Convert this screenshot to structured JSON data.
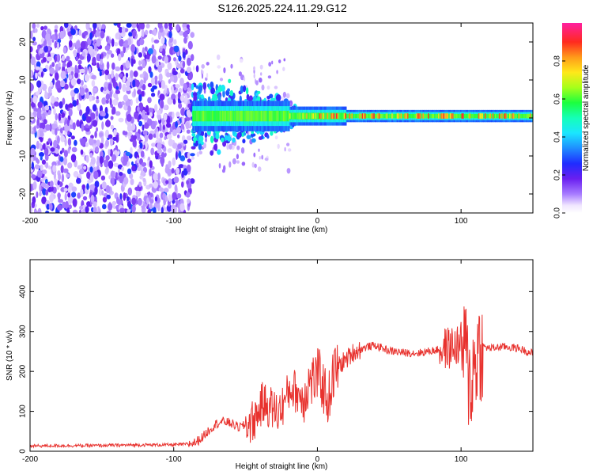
{
  "title": "S126.2025.224.11.29.G12",
  "colors": {
    "snr_line": "#e8322e",
    "spectrogram_low": "#7a1fe6",
    "spectrogram_mid": "#1cff6a",
    "spectrogram_high": "#e8323c",
    "axis": "#000000"
  },
  "chart_data": [
    {
      "id": "spectrogram",
      "type": "heatmap",
      "title": "S126.2025.224.11.29.G12",
      "xlabel": "Height of straight line (km)",
      "ylabel": "Frequency (Hz)",
      "xlim": [
        -200,
        150
      ],
      "ylim": [
        -25,
        25
      ],
      "xticks": [
        -200,
        -100,
        0,
        100
      ],
      "yticks": [
        -20,
        -10,
        0,
        10,
        20
      ],
      "colorbar": {
        "label": "Normalized spectral amplitude",
        "range": [
          0,
          1
        ],
        "ticks": [
          0.0,
          0.2,
          0.4,
          0.6,
          0.8
        ]
      },
      "features": [
        {
          "region": "x -200 to -87 km",
          "description": "broadband noise, amplitude 0.1-0.3, spans full frequency range"
        },
        {
          "region": "x -87 to -20 km",
          "description": "signal emerges near 0 Hz, spread ±8 Hz, amplitude 0.3-0.6"
        },
        {
          "region": "x -20 to 150 km",
          "description": "narrow tone at ~0.5 Hz, amplitude 0.6-1.0"
        }
      ],
      "tone_frequency_hz": 0.5,
      "noise_end_km": -87
    },
    {
      "id": "snr",
      "type": "line",
      "xlabel": "Height of straight line (km)",
      "ylabel": "SNR (10 * v/v)",
      "xlim": [
        -200,
        150
      ],
      "ylim": [
        0,
        480
      ],
      "xticks": [
        -200,
        -100,
        0,
        100
      ],
      "yticks": [
        0,
        100,
        200,
        300,
        400
      ],
      "series": [
        {
          "name": "SNR",
          "x": [
            -200,
            -180,
            -160,
            -140,
            -120,
            -100,
            -90,
            -85,
            -80,
            -75,
            -70,
            -65,
            -60,
            -55,
            -50,
            -45,
            -42,
            -40,
            -38,
            -35,
            -32,
            -30,
            -28,
            -25,
            -22,
            -20,
            -18,
            -15,
            -12,
            -10,
            -8,
            -5,
            -2,
            0,
            2,
            5,
            8,
            10,
            12,
            15,
            20,
            25,
            30,
            35,
            40,
            50,
            60,
            70,
            80,
            85,
            90,
            95,
            100,
            103,
            105,
            107,
            110,
            112,
            115,
            120,
            130,
            140,
            150
          ],
          "y": [
            13,
            14,
            14,
            15,
            16,
            16,
            18,
            22,
            35,
            55,
            70,
            75,
            70,
            60,
            65,
            75,
            90,
            110,
            120,
            115,
            110,
            105,
            95,
            110,
            130,
            150,
            160,
            150,
            140,
            130,
            155,
            175,
            180,
            190,
            185,
            150,
            130,
            175,
            200,
            215,
            230,
            248,
            255,
            262,
            265,
            252,
            247,
            246,
            252,
            255,
            258,
            262,
            270,
            255,
            190,
            170,
            230,
            255,
            262,
            258,
            262,
            258,
            245
          ]
        }
      ]
    }
  ]
}
